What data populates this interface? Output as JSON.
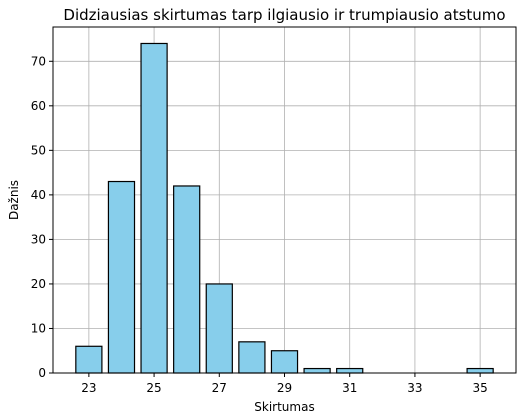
{
  "chart_data": {
    "type": "bar",
    "title": "Didziausias skirtumas tarp ilgiausio ir trumpiausio atstumo",
    "xlabel": "Skirtumas",
    "ylabel": "Dažnis",
    "x": [
      23,
      24,
      25,
      26,
      27,
      28,
      29,
      30,
      31,
      35
    ],
    "values": [
      6,
      43,
      74,
      42,
      20,
      7,
      5,
      1,
      1,
      1
    ],
    "xlim": [
      21.9,
      36.1
    ],
    "ylim": [
      0,
      77.7
    ],
    "xticks": [
      23,
      25,
      27,
      29,
      31,
      33,
      35
    ],
    "yticks": [
      0,
      10,
      20,
      30,
      40,
      50,
      60,
      70
    ],
    "bar_width": 0.8,
    "bar_color": "#87ceeb",
    "edge_color": "#000000",
    "grid": true
  }
}
